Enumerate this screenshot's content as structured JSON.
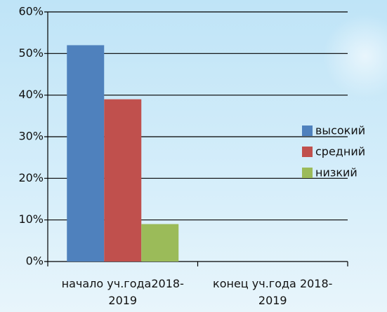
{
  "chart_data": {
    "type": "bar",
    "categories": [
      "начало уч.года2018-2019",
      "конец уч.года 2018-2019"
    ],
    "series": [
      {
        "name": "высокий",
        "color": "#4f81bd",
        "values": [
          52,
          null
        ]
      },
      {
        "name": "средний",
        "color": "#c0504d",
        "values": [
          39,
          null
        ]
      },
      {
        "name": "низкий",
        "color": "#9bbb59",
        "values": [
          9,
          null
        ]
      }
    ],
    "ylim": [
      0,
      60
    ],
    "yticks": [
      {
        "value": 0,
        "label": "0%"
      },
      {
        "value": 10,
        "label": "10%"
      },
      {
        "value": 20,
        "label": "20%"
      },
      {
        "value": 30,
        "label": "30%"
      },
      {
        "value": 40,
        "label": "40%"
      },
      {
        "value": 50,
        "label": "50%"
      },
      {
        "value": 60,
        "label": "60%"
      }
    ],
    "grid": true,
    "legend": "right"
  }
}
